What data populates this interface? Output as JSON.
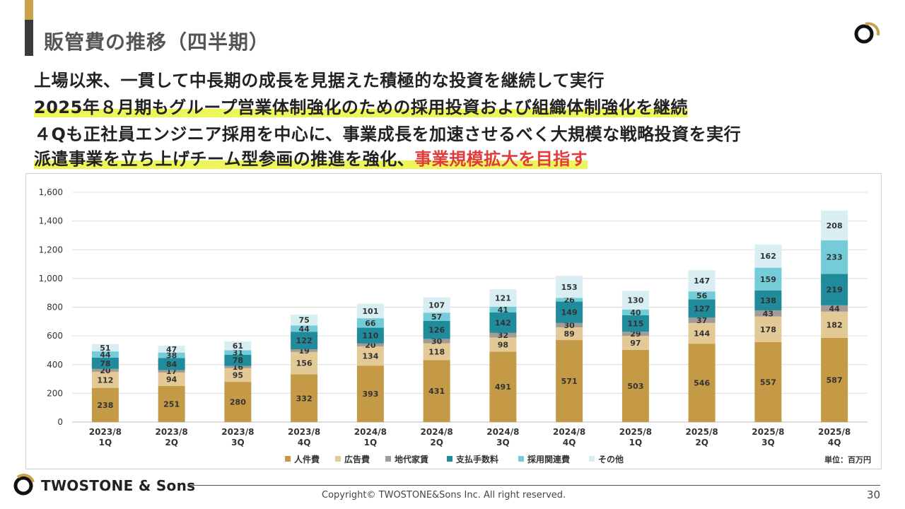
{
  "title": "販管費の推移（四半期）",
  "headlines": [
    {
      "text": "上場以来、一貫して中長期の成長を見据えた積極的な投資を継続して実行"
    },
    {
      "text": "2025年８月期もグループ営業体制強化のための採用投資および組織体制強化を継続"
    },
    {
      "text": "４Qも正社員エンジニア採用を中心に、事業成長を加速させるべく大規模な戦略投資を実行"
    },
    {
      "text": "派遣事業を立ち上げチーム型参画の推進を強化、",
      "emphasis": "事業規模拡大を目指す"
    }
  ],
  "chart_data": {
    "type": "bar",
    "stacked": true,
    "categories": [
      [
        "2023/8",
        "1Q"
      ],
      [
        "2023/8",
        "2Q"
      ],
      [
        "2023/8",
        "3Q"
      ],
      [
        "2023/8",
        "4Q"
      ],
      [
        "2024/8",
        "1Q"
      ],
      [
        "2024/8",
        "2Q"
      ],
      [
        "2024/8",
        "3Q"
      ],
      [
        "2024/8",
        "4Q"
      ],
      [
        "2025/8",
        "1Q"
      ],
      [
        "2025/8",
        "2Q"
      ],
      [
        "2025/8",
        "3Q"
      ],
      [
        "2025/8",
        "4Q"
      ]
    ],
    "series": [
      {
        "name": "人件費",
        "color": "#c49a46",
        "values": [
          238,
          251,
          280,
          332,
          393,
          431,
          491,
          571,
          503,
          546,
          557,
          587
        ]
      },
      {
        "name": "広告費",
        "color": "#e3c995",
        "values": [
          112,
          94,
          95,
          156,
          134,
          118,
          98,
          89,
          97,
          144,
          178,
          182
        ]
      },
      {
        "name": "地代家賃",
        "color": "#a39b95",
        "values": [
          20,
          17,
          16,
          19,
          20,
          30,
          32,
          30,
          29,
          37,
          43,
          44
        ]
      },
      {
        "name": "支払手数料",
        "color": "#1f8b9b",
        "values": [
          78,
          84,
          78,
          122,
          110,
          126,
          142,
          149,
          115,
          127,
          138,
          219
        ]
      },
      {
        "name": "採用関連費",
        "color": "#74ccd8",
        "values": [
          44,
          38,
          31,
          44,
          66,
          57,
          41,
          26,
          40,
          56,
          159,
          233
        ]
      },
      {
        "name": "その他",
        "color": "#d9eef3",
        "values": [
          51,
          47,
          61,
          75,
          101,
          107,
          121,
          153,
          130,
          147,
          162,
          208
        ]
      }
    ],
    "ylim": [
      0,
      1600
    ],
    "yticks": [
      0,
      200,
      400,
      600,
      800,
      1000,
      1200,
      1400,
      1600
    ],
    "ytick_labels": [
      "0",
      "200",
      "400",
      "600",
      "800",
      "1,000",
      "1,200",
      "1,400",
      "1,600"
    ],
    "unit_label": "単位：百万円",
    "legend_position": "bottom"
  },
  "footer": {
    "brand": "TWOSTONE & Sons",
    "copyright": "Copyright© TWOSTONE&Sons Inc. All right reserved.",
    "page": "30"
  },
  "colors": {
    "accent_gold": "#c9a24a",
    "dark_bar": "#3a3a3a",
    "highlight": "#eef55a",
    "emphasis_red": "#e23b3b"
  }
}
